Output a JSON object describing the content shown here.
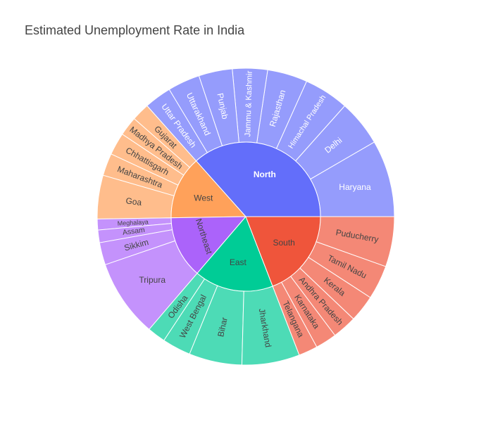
{
  "chart_data": {
    "type": "sunburst",
    "title": "Estimated Unemployment Rate in India",
    "regions": [
      {
        "name": "North",
        "color": "#636efa",
        "child_color": "#959cfc",
        "label_color": "#ffffff",
        "states": [
          {
            "name": "Haryana",
            "value": 27.5
          },
          {
            "name": "Delhi",
            "value": 16.5
          },
          {
            "name": "Himachal Pradesh",
            "value": 16.0
          },
          {
            "name": "Rajasthan",
            "value": 14.3
          },
          {
            "name": "Jammu & Kashmir",
            "value": 12.5
          },
          {
            "name": "Punjab",
            "value": 12.0
          },
          {
            "name": "Uttarakhand",
            "value": 11.5
          },
          {
            "name": "Uttar Pradesh",
            "value": 9.7
          }
        ]
      },
      {
        "name": "West",
        "color": "#ffa15a",
        "child_color": "#ffbd8c",
        "label_color": "#444444",
        "states": [
          {
            "name": "Gujarat",
            "value": 6.4
          },
          {
            "name": "Madhya Pradesh",
            "value": 6.9
          },
          {
            "name": "Chhattisgarh",
            "value": 8.0
          },
          {
            "name": "Maharashtra",
            "value": 8.0
          },
          {
            "name": "Goa",
            "value": 15.6
          }
        ]
      },
      {
        "name": "Northeast",
        "color": "#ab63fa",
        "child_color": "#c492fc",
        "label_color": "#444444",
        "states": [
          {
            "name": "Meghalaya",
            "value": 3.9
          },
          {
            "name": "Assam",
            "value": 4.5
          },
          {
            "name": "Sikkim",
            "value": 8.0
          },
          {
            "name": "Tripura",
            "value": 27.8
          }
        ]
      },
      {
        "name": "East",
        "color": "#00cc96",
        "child_color": "#4ddbb6",
        "label_color": "#444444",
        "states": [
          {
            "name": "Odisha",
            "value": 6.5
          },
          {
            "name": "West Bengal",
            "value": 10.2
          },
          {
            "name": "Bihar",
            "value": 18.9
          },
          {
            "name": "Jharkhand",
            "value": 20.6
          }
        ]
      },
      {
        "name": "South",
        "color": "#ef553b",
        "child_color": "#f48876",
        "label_color": "#444444",
        "states": [
          {
            "name": "Telangana",
            "value": 6.8
          },
          {
            "name": "Karnataka",
            "value": 7.6
          },
          {
            "name": "Andhra Pradesh",
            "value": 8.7
          },
          {
            "name": "Kerala",
            "value": 9.6
          },
          {
            "name": "Tamil Nadu",
            "value": 12.2
          },
          {
            "name": "Puducherry",
            "value": 17.9
          }
        ]
      }
    ]
  }
}
